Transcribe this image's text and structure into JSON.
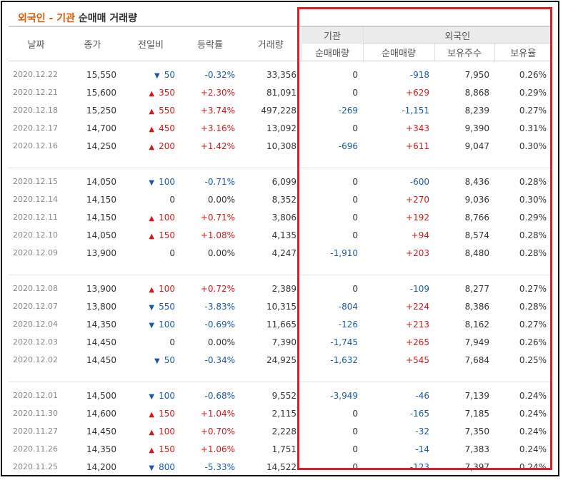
{
  "title": {
    "part1": "외국인 - 기관",
    "part2": "순매매 거래량"
  },
  "headers": {
    "date": "날짜",
    "close": "종가",
    "diff": "전일비",
    "rate": "등락률",
    "volume": "거래량",
    "institution": "기관",
    "foreign": "외국인",
    "inst_net": "순매매량",
    "foreign_net": "순매매량",
    "foreign_hold": "보유주수",
    "foreign_ratio": "보유율"
  },
  "groups": [
    [
      {
        "date": "2020.12.22",
        "close": "15,550",
        "dir": "down",
        "diff": "50",
        "rate": "-0.32%",
        "volume": "33,356",
        "inst": "0",
        "fnet": "-918",
        "hold": "7,950",
        "ratio": "0.26%"
      },
      {
        "date": "2020.12.21",
        "close": "15,600",
        "dir": "up",
        "diff": "350",
        "rate": "+2.30%",
        "volume": "81,091",
        "inst": "0",
        "fnet": "+629",
        "hold": "8,868",
        "ratio": "0.29%"
      },
      {
        "date": "2020.12.18",
        "close": "15,250",
        "dir": "up",
        "diff": "550",
        "rate": "+3.74%",
        "volume": "497,228",
        "inst": "-269",
        "fnet": "-1,151",
        "hold": "8,239",
        "ratio": "0.27%"
      },
      {
        "date": "2020.12.17",
        "close": "14,700",
        "dir": "up",
        "diff": "450",
        "rate": "+3.16%",
        "volume": "13,092",
        "inst": "0",
        "fnet": "+343",
        "hold": "9,390",
        "ratio": "0.31%"
      },
      {
        "date": "2020.12.16",
        "close": "14,250",
        "dir": "up",
        "diff": "200",
        "rate": "+1.42%",
        "volume": "10,308",
        "inst": "-696",
        "fnet": "+611",
        "hold": "9,047",
        "ratio": "0.30%"
      }
    ],
    [
      {
        "date": "2020.12.15",
        "close": "14,050",
        "dir": "down",
        "diff": "100",
        "rate": "-0.71%",
        "volume": "6,099",
        "inst": "0",
        "fnet": "-600",
        "hold": "8,436",
        "ratio": "0.28%"
      },
      {
        "date": "2020.12.14",
        "close": "14,150",
        "dir": "none",
        "diff": "0",
        "rate": "0.00%",
        "volume": "8,352",
        "inst": "0",
        "fnet": "+270",
        "hold": "9,036",
        "ratio": "0.30%"
      },
      {
        "date": "2020.12.11",
        "close": "14,150",
        "dir": "up",
        "diff": "100",
        "rate": "+0.71%",
        "volume": "3,806",
        "inst": "0",
        "fnet": "+192",
        "hold": "8,766",
        "ratio": "0.29%"
      },
      {
        "date": "2020.12.10",
        "close": "14,050",
        "dir": "up",
        "diff": "150",
        "rate": "+1.08%",
        "volume": "4,135",
        "inst": "0",
        "fnet": "+94",
        "hold": "8,574",
        "ratio": "0.28%"
      },
      {
        "date": "2020.12.09",
        "close": "13,900",
        "dir": "none",
        "diff": "0",
        "rate": "0.00%",
        "volume": "4,247",
        "inst": "-1,910",
        "fnet": "+203",
        "hold": "8,480",
        "ratio": "0.28%"
      }
    ],
    [
      {
        "date": "2020.12.08",
        "close": "13,900",
        "dir": "up",
        "diff": "100",
        "rate": "+0.72%",
        "volume": "2,389",
        "inst": "0",
        "fnet": "-109",
        "hold": "8,277",
        "ratio": "0.27%"
      },
      {
        "date": "2020.12.07",
        "close": "13,800",
        "dir": "down",
        "diff": "550",
        "rate": "-3.83%",
        "volume": "10,315",
        "inst": "-804",
        "fnet": "+224",
        "hold": "8,386",
        "ratio": "0.28%"
      },
      {
        "date": "2020.12.04",
        "close": "14,350",
        "dir": "down",
        "diff": "100",
        "rate": "-0.69%",
        "volume": "11,665",
        "inst": "-126",
        "fnet": "+213",
        "hold": "8,162",
        "ratio": "0.27%"
      },
      {
        "date": "2020.12.03",
        "close": "14,450",
        "dir": "none",
        "diff": "0",
        "rate": "0.00%",
        "volume": "7,390",
        "inst": "-1,745",
        "fnet": "+265",
        "hold": "7,949",
        "ratio": "0.26%"
      },
      {
        "date": "2020.12.02",
        "close": "14,450",
        "dir": "down",
        "diff": "50",
        "rate": "-0.34%",
        "volume": "24,925",
        "inst": "-1,632",
        "fnet": "+545",
        "hold": "7,684",
        "ratio": "0.25%"
      }
    ],
    [
      {
        "date": "2020.12.01",
        "close": "14,500",
        "dir": "down",
        "diff": "100",
        "rate": "-0.68%",
        "volume": "9,552",
        "inst": "-3,949",
        "fnet": "-46",
        "hold": "7,139",
        "ratio": "0.24%"
      },
      {
        "date": "2020.11.30",
        "close": "14,600",
        "dir": "up",
        "diff": "150",
        "rate": "+1.04%",
        "volume": "2,115",
        "inst": "0",
        "fnet": "-165",
        "hold": "7,185",
        "ratio": "0.24%"
      },
      {
        "date": "2020.11.27",
        "close": "14,450",
        "dir": "up",
        "diff": "100",
        "rate": "+0.70%",
        "volume": "2,228",
        "inst": "0",
        "fnet": "-32",
        "hold": "7,350",
        "ratio": "0.24%"
      },
      {
        "date": "2020.11.26",
        "close": "14,350",
        "dir": "up",
        "diff": "150",
        "rate": "+1.06%",
        "volume": "1,751",
        "inst": "0",
        "fnet": "-14",
        "hold": "7,383",
        "ratio": "0.24%"
      },
      {
        "date": "2020.11.25",
        "close": "14,200",
        "dir": "down",
        "diff": "800",
        "rate": "-5.33%",
        "volume": "14,522",
        "inst": "0",
        "fnet": "-123",
        "hold": "7,397",
        "ratio": "0.24%"
      }
    ]
  ],
  "colors": {
    "up": "#d11a1a",
    "down": "#1a5aa8",
    "title_accent": "#e05a00",
    "highlight": "#d7222b"
  },
  "icons": {
    "up": "triangle-up-icon",
    "down": "triangle-down-icon"
  }
}
